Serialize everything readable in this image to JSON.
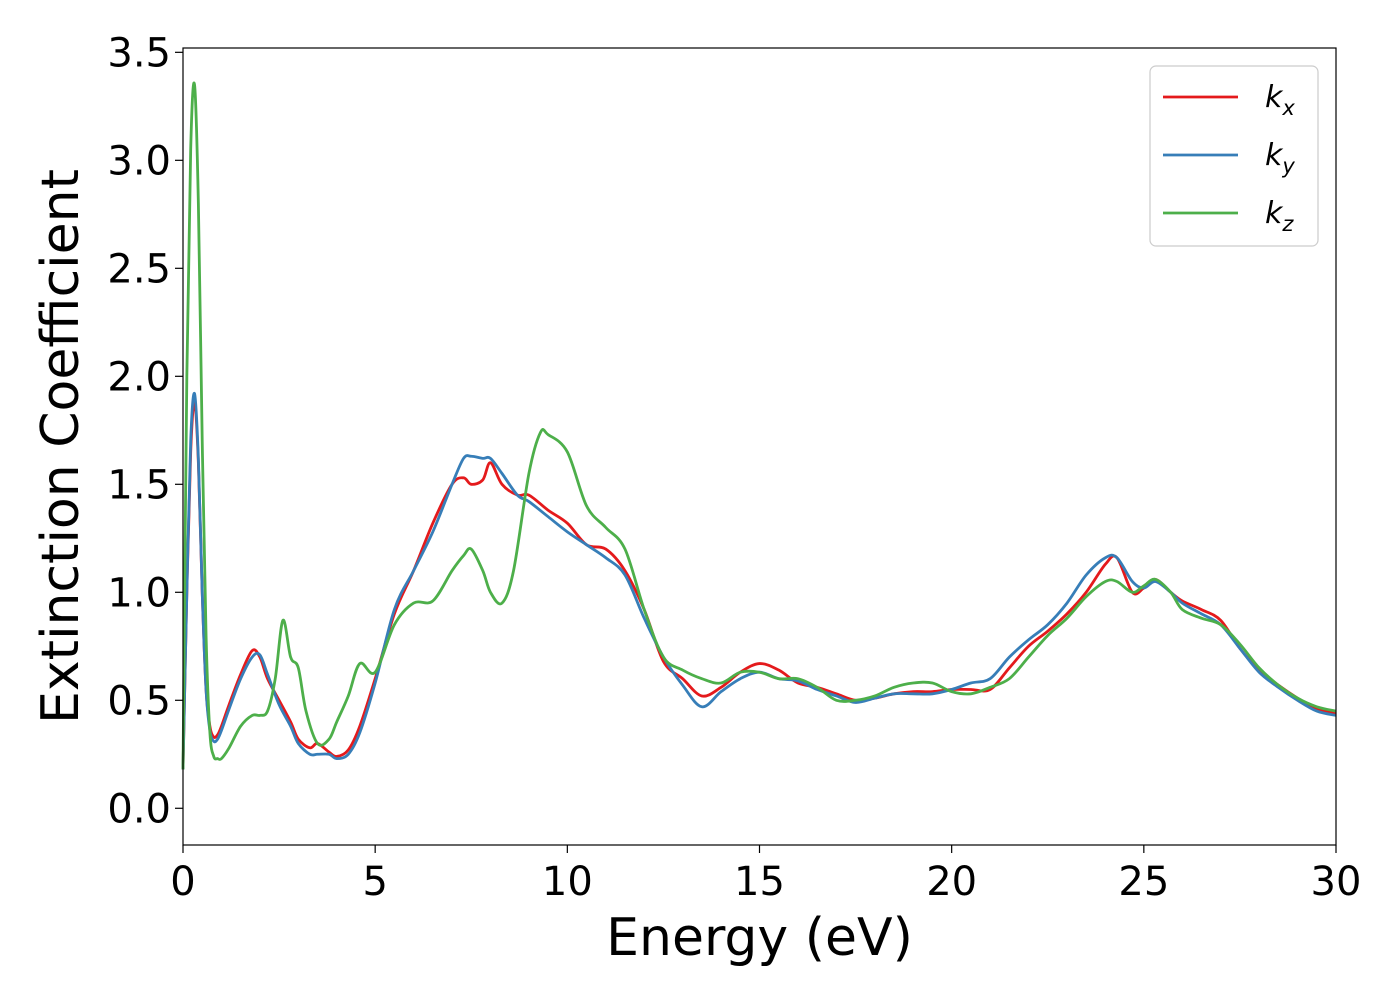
{
  "chart_data": {
    "type": "line",
    "title": "",
    "xlabel": "Energy (eV)",
    "ylabel": "Extinction Coefficient",
    "xlim": [
      0,
      30
    ],
    "ylim": [
      -0.17,
      3.52
    ],
    "xticks": [
      "0",
      "5",
      "10",
      "15",
      "20",
      "25",
      "30"
    ],
    "xtick_values": [
      0,
      5,
      10,
      15,
      20,
      25,
      30
    ],
    "yticks": [
      "0.0",
      "0.5",
      "1.0",
      "1.5",
      "2.0",
      "2.5",
      "3.0",
      "3.5"
    ],
    "ytick_values": [
      0,
      0.5,
      1.0,
      1.5,
      2.0,
      2.5,
      3.0,
      3.5
    ],
    "grid": false,
    "legend_position": "top-right",
    "series": [
      {
        "name": "k",
        "subscript": "x",
        "color": "#e41a1c",
        "x": [
          0,
          0.1,
          0.2,
          0.3,
          0.4,
          0.5,
          0.6,
          0.7,
          0.8,
          0.9,
          1.0,
          1.2,
          1.5,
          1.8,
          2.0,
          2.2,
          2.5,
          2.8,
          3.0,
          3.3,
          3.5,
          3.8,
          4.0,
          4.3,
          4.6,
          5.0,
          5.5,
          6.0,
          6.5,
          7.0,
          7.3,
          7.5,
          7.8,
          8.0,
          8.3,
          8.7,
          9.0,
          9.5,
          10.0,
          10.5,
          11.0,
          11.5,
          12.0,
          12.5,
          13.0,
          13.5,
          14.0,
          14.5,
          15.0,
          15.5,
          16.0,
          16.5,
          17.0,
          17.5,
          18.0,
          18.5,
          19.0,
          19.5,
          20.0,
          20.5,
          21.0,
          21.5,
          22.0,
          22.5,
          23.0,
          23.5,
          24.0,
          24.3,
          24.7,
          25.0,
          25.3,
          25.7,
          26.0,
          26.5,
          27.0,
          27.5,
          28.0,
          28.5,
          29.0,
          29.5,
          30.0
        ],
        "y": [
          0.18,
          1.0,
          1.65,
          1.88,
          1.6,
          1.0,
          0.55,
          0.38,
          0.33,
          0.34,
          0.38,
          0.48,
          0.62,
          0.73,
          0.7,
          0.6,
          0.5,
          0.4,
          0.32,
          0.28,
          0.3,
          0.26,
          0.24,
          0.27,
          0.38,
          0.6,
          0.9,
          1.1,
          1.32,
          1.5,
          1.53,
          1.5,
          1.52,
          1.6,
          1.5,
          1.45,
          1.45,
          1.38,
          1.32,
          1.22,
          1.2,
          1.1,
          0.92,
          0.68,
          0.6,
          0.52,
          0.56,
          0.63,
          0.67,
          0.64,
          0.58,
          0.56,
          0.53,
          0.5,
          0.51,
          0.53,
          0.54,
          0.54,
          0.55,
          0.55,
          0.55,
          0.65,
          0.75,
          0.82,
          0.9,
          1.0,
          1.13,
          1.16,
          1.0,
          1.02,
          1.06,
          1.0,
          0.96,
          0.92,
          0.87,
          0.74,
          0.64,
          0.57,
          0.51,
          0.46,
          0.44
        ]
      },
      {
        "name": "k",
        "subscript": "y",
        "color": "#377eb8",
        "x": [
          0,
          0.1,
          0.2,
          0.3,
          0.4,
          0.5,
          0.6,
          0.7,
          0.8,
          0.9,
          1.0,
          1.2,
          1.5,
          1.8,
          2.0,
          2.2,
          2.5,
          2.8,
          3.0,
          3.3,
          3.5,
          3.8,
          4.0,
          4.3,
          4.6,
          5.0,
          5.5,
          6.0,
          6.5,
          7.0,
          7.3,
          7.5,
          7.8,
          8.0,
          8.3,
          8.7,
          9.0,
          9.5,
          10.0,
          10.5,
          11.0,
          11.5,
          12.0,
          12.5,
          13.0,
          13.5,
          14.0,
          14.5,
          15.0,
          15.5,
          16.0,
          16.5,
          17.0,
          17.5,
          18.0,
          18.5,
          19.0,
          19.5,
          20.0,
          20.5,
          21.0,
          21.5,
          22.0,
          22.5,
          23.0,
          23.5,
          24.0,
          24.3,
          24.7,
          25.0,
          25.3,
          25.7,
          26.0,
          26.5,
          27.0,
          27.5,
          28.0,
          28.5,
          29.0,
          29.5,
          30.0
        ],
        "y": [
          0.18,
          1.0,
          1.7,
          1.92,
          1.62,
          1.0,
          0.55,
          0.36,
          0.31,
          0.32,
          0.36,
          0.46,
          0.6,
          0.7,
          0.71,
          0.62,
          0.48,
          0.38,
          0.3,
          0.25,
          0.25,
          0.25,
          0.23,
          0.25,
          0.35,
          0.58,
          0.92,
          1.1,
          1.28,
          1.5,
          1.62,
          1.63,
          1.62,
          1.62,
          1.55,
          1.45,
          1.42,
          1.35,
          1.28,
          1.22,
          1.16,
          1.08,
          0.88,
          0.7,
          0.57,
          0.47,
          0.54,
          0.6,
          0.63,
          0.6,
          0.59,
          0.55,
          0.52,
          0.49,
          0.51,
          0.53,
          0.53,
          0.53,
          0.55,
          0.58,
          0.6,
          0.7,
          0.78,
          0.85,
          0.95,
          1.08,
          1.16,
          1.16,
          1.05,
          1.02,
          1.05,
          1.0,
          0.95,
          0.9,
          0.85,
          0.74,
          0.63,
          0.56,
          0.5,
          0.45,
          0.43
        ]
      },
      {
        "name": "k",
        "subscript": "z",
        "color": "#4daf4a",
        "x": [
          0,
          0.1,
          0.2,
          0.3,
          0.4,
          0.5,
          0.6,
          0.7,
          0.8,
          0.9,
          1.0,
          1.2,
          1.5,
          1.8,
          2.0,
          2.2,
          2.4,
          2.6,
          2.8,
          3.0,
          3.2,
          3.5,
          3.8,
          4.0,
          4.3,
          4.6,
          5.0,
          5.5,
          6.0,
          6.5,
          7.0,
          7.3,
          7.5,
          7.8,
          8.0,
          8.3,
          8.6,
          9.0,
          9.3,
          9.5,
          10.0,
          10.5,
          11.0,
          11.5,
          12.0,
          12.5,
          13.0,
          13.5,
          14.0,
          14.5,
          15.0,
          15.5,
          16.0,
          16.5,
          17.0,
          17.5,
          18.0,
          18.5,
          19.0,
          19.5,
          20.0,
          20.5,
          21.0,
          21.5,
          22.0,
          22.5,
          23.0,
          23.5,
          24.0,
          24.3,
          24.7,
          25.0,
          25.3,
          25.7,
          26.0,
          26.5,
          27.0,
          27.5,
          28.0,
          28.5,
          29.0,
          29.5,
          30.0
        ],
        "y": [
          0.18,
          2.0,
          3.05,
          3.35,
          2.8,
          1.7,
          0.8,
          0.35,
          0.24,
          0.23,
          0.23,
          0.28,
          0.38,
          0.43,
          0.43,
          0.45,
          0.6,
          0.87,
          0.7,
          0.65,
          0.45,
          0.3,
          0.32,
          0.4,
          0.52,
          0.67,
          0.63,
          0.85,
          0.95,
          0.96,
          1.1,
          1.17,
          1.2,
          1.1,
          1.0,
          0.95,
          1.1,
          1.55,
          1.74,
          1.73,
          1.65,
          1.4,
          1.3,
          1.2,
          0.92,
          0.7,
          0.64,
          0.6,
          0.58,
          0.63,
          0.63,
          0.6,
          0.6,
          0.56,
          0.5,
          0.5,
          0.52,
          0.56,
          0.58,
          0.58,
          0.54,
          0.53,
          0.56,
          0.6,
          0.7,
          0.8,
          0.88,
          0.98,
          1.05,
          1.05,
          1.0,
          1.03,
          1.06,
          1.0,
          0.92,
          0.88,
          0.85,
          0.76,
          0.65,
          0.57,
          0.51,
          0.47,
          0.45
        ]
      }
    ]
  }
}
